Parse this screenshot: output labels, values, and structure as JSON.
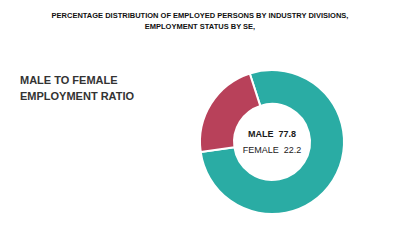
{
  "chart_data": {
    "type": "pie",
    "title": "PERCENTAGE DISTRIBUTION OF EMPLOYED PERSONS BY INDUSTRY DIVISIONS,",
    "subtitle": "EMPLOYMENT STATUS BY SE,",
    "values": [
      77.8,
      22.2
    ],
    "colors": [
      "#2aaca4",
      "#b8415a"
    ],
    "annotations": [
      "MALE TO FEMALE\nEMPLOYMENT RATIO",
      "MALE  77.8",
      "FEMALE  22.2"
    ]
  }
}
